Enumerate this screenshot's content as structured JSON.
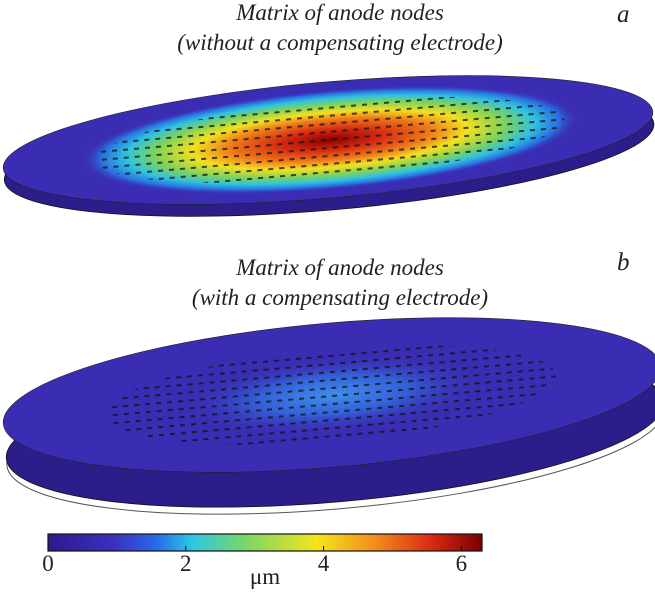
{
  "panels": [
    {
      "label": "a",
      "title_line1": "Matrix of anode nodes",
      "title_line2": "(without a compensating electrode)"
    },
    {
      "label": "b",
      "title_line1": "Matrix of anode nodes",
      "title_line2": "(with a compensating electrode)"
    }
  ],
  "colorbar": {
    "lim": [
      0,
      6.3
    ],
    "ticks": [
      0,
      2,
      4,
      6
    ],
    "unit": "μm"
  }
}
